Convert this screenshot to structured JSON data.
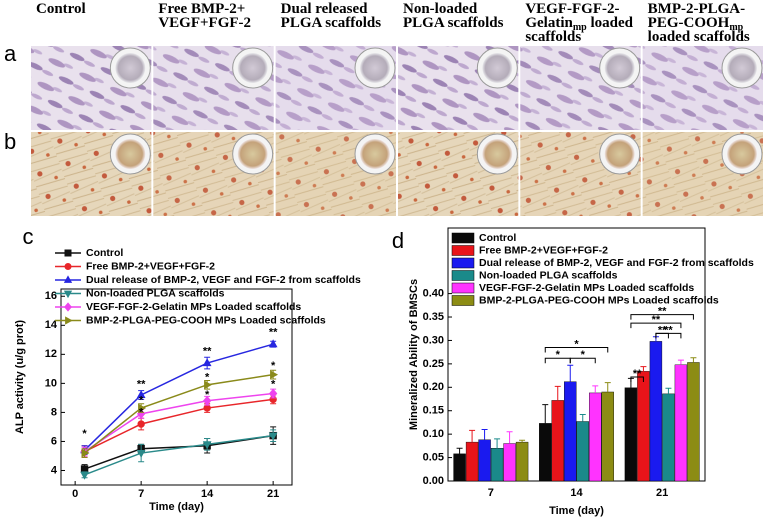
{
  "figure": {
    "column_headers": [
      [
        [
          {
            "text": "Control"
          }
        ]
      ],
      [
        [
          {
            "text": "Free BMP-2+"
          }
        ],
        [
          {
            "text": "VEGF+FGF-2"
          }
        ]
      ],
      [
        [
          {
            "text": "Dual released"
          }
        ],
        [
          {
            "text": "PLGA scaffolds"
          }
        ]
      ],
      [
        [
          {
            "text": "Non-loaded"
          }
        ],
        [
          {
            "text": "PLGA scaffolds"
          }
        ]
      ],
      [
        [
          {
            "text": "VEGF-FGF-2-"
          }
        ],
        [
          {
            "text": "Gelatin"
          },
          {
            "text": "mp",
            "sub": true
          },
          {
            "text": " loaded"
          }
        ],
        [
          {
            "text": "scaffolds"
          }
        ]
      ],
      [
        [
          {
            "text": "BMP-2-PLGA-"
          }
        ],
        [
          {
            "text": "PEG-COOH"
          },
          {
            "text": "mp",
            "sub": true
          }
        ],
        [
          {
            "text": "loaded scaffolds"
          }
        ]
      ]
    ],
    "row_labels": [
      "a",
      "b"
    ]
  },
  "chart_data": [
    {
      "type": "line",
      "panel_label": "c",
      "x_label": "Time (day)",
      "y_label": "ALP activity (u/g prot)",
      "x": [
        1,
        7,
        14,
        21
      ],
      "xlim": [
        -1.5,
        23
      ],
      "xticks": [
        0,
        7,
        14,
        21
      ],
      "ylim": [
        3,
        16.5
      ],
      "yticks": [
        4,
        6,
        8,
        10,
        12,
        14,
        16
      ],
      "series": [
        {
          "name": "Control",
          "color": "#111111",
          "marker": "square",
          "values": [
            4.1,
            5.5,
            5.7,
            6.4
          ],
          "errors": [
            0.3,
            0.3,
            0.5,
            0.6
          ]
        },
        {
          "name": "Free BMP-2+VEGF+FGF-2",
          "color": "#e8262a",
          "marker": "circle",
          "values": [
            5.3,
            7.2,
            8.3,
            8.9
          ],
          "errors": [
            0.4,
            0.4,
            0.3,
            0.3
          ]
        },
        {
          "name": "Dual release of BMP-2, VEGF and FGF-2 from scaffolds",
          "color": "#2727e0",
          "marker": "triangle-up",
          "values": [
            5.4,
            9.2,
            11.4,
            12.7
          ],
          "errors": [
            0.3,
            0.3,
            0.4,
            0.2
          ]
        },
        {
          "name": "Non-loaded PLGA scaffolds",
          "color": "#2a8a8a",
          "marker": "triangle-down",
          "values": [
            3.7,
            5.2,
            5.8,
            6.4
          ],
          "errors": [
            0.2,
            0.6,
            0.4,
            0.4
          ]
        },
        {
          "name": "VEGF-FGF-2-Gelatin MPs  Loaded scaffolds",
          "color": "#ee44ee",
          "marker": "diamond",
          "values": [
            5.3,
            7.9,
            8.8,
            9.3
          ],
          "errors": [
            0.3,
            0.3,
            0.3,
            0.3
          ]
        },
        {
          "name": "BMP-2-PLGA-PEG-COOH MPs Loaded scaffolds",
          "color": "#8a8a1a",
          "marker": "triangle-right",
          "values": [
            5.2,
            8.3,
            9.9,
            10.6
          ],
          "errors": [
            0.3,
            0.3,
            0.3,
            0.3
          ]
        }
      ],
      "annotations": [
        {
          "text": "*",
          "x": 1,
          "y": 6.5
        },
        {
          "text": "**",
          "x": 7,
          "y": 9.9
        },
        {
          "text": "*",
          "x": 7,
          "y": 8.8
        },
        {
          "text": "*",
          "x": 7,
          "y": 8.0
        },
        {
          "text": "**",
          "x": 14,
          "y": 12.2
        },
        {
          "text": "*",
          "x": 14,
          "y": 10.4
        },
        {
          "text": "*",
          "x": 14,
          "y": 9.2
        },
        {
          "text": "**",
          "x": 21,
          "y": 13.5
        },
        {
          "text": "*",
          "x": 21,
          "y": 11.2
        },
        {
          "text": "*",
          "x": 21,
          "y": 9.9
        }
      ]
    },
    {
      "type": "bar",
      "panel_label": "d",
      "x_label": "Time (day)",
      "y_label": "Mineralized Ability of BMSCs",
      "categories": [
        "7",
        "14",
        "21"
      ],
      "ylim": [
        0,
        0.54
      ],
      "yticks": [
        {
          "value": 0,
          "label": "0.00"
        },
        {
          "value": 0.05,
          "label": "0.05"
        },
        {
          "value": 0.1,
          "label": "0.10"
        },
        {
          "value": 0.15,
          "label": "0.15"
        },
        {
          "value": 0.2,
          "label": "0.20"
        },
        {
          "value": 0.25,
          "label": "0.25"
        },
        {
          "value": 0.3,
          "label": "0.30"
        },
        {
          "value": 0.35,
          "label": "0.35"
        },
        {
          "value": 0.4,
          "label": "0.40"
        }
      ],
      "series": [
        {
          "name": "Control",
          "color": "#0a0a0a",
          "values": [
            0.058,
            0.123,
            0.199
          ],
          "errors": [
            0.012,
            0.04,
            0.02
          ]
        },
        {
          "name": "Free BMP-2+VEGF+FGF-2",
          "color": "#e8141a",
          "values": [
            0.083,
            0.172,
            0.234
          ],
          "errors": [
            0.025,
            0.03,
            0.01
          ]
        },
        {
          "name": "Dual release of BMP-2, VEGF and FGF-2 from scaffolds",
          "color": "#1a1aef",
          "values": [
            0.088,
            0.212,
            0.298
          ],
          "errors": [
            0.022,
            0.035,
            0.01
          ]
        },
        {
          "name": "Non-loaded PLGA scaffolds",
          "color": "#1a8a8a",
          "values": [
            0.07,
            0.127,
            0.186
          ],
          "errors": [
            0.02,
            0.015,
            0.012
          ]
        },
        {
          "name": "VEGF-FGF-2-Gelatin MPs  Loaded scaffolds",
          "color": "#ff33ff",
          "values": [
            0.08,
            0.188,
            0.248
          ],
          "errors": [
            0.025,
            0.015,
            0.01
          ]
        },
        {
          "name": "BMP-2-PLGA-PEG-COOH MPs Loaded scaffolds",
          "color": "#8c8c14",
          "values": [
            0.083,
            0.19,
            0.253
          ],
          "errors": [
            0.004,
            0.02,
            0.01
          ]
        }
      ],
      "brackets": [
        {
          "group": 1,
          "from": 0,
          "to": 5,
          "y": 0.285,
          "text": "*"
        },
        {
          "group": 1,
          "from": 0,
          "to": 2,
          "y": 0.262,
          "text": "*"
        },
        {
          "group": 1,
          "from": 2,
          "to": 4,
          "y": 0.262,
          "text": "*"
        },
        {
          "group": 2,
          "from": 0,
          "to": 1,
          "y": 0.222,
          "text": "**"
        },
        {
          "group": 2,
          "from": 0,
          "to": 5,
          "y": 0.355,
          "text": "**"
        },
        {
          "group": 2,
          "from": 0,
          "to": 4,
          "y": 0.337,
          "text": "**"
        },
        {
          "group": 2,
          "from": 2,
          "to": 3,
          "y": 0.315,
          "text": "**"
        },
        {
          "group": 2,
          "from": 2,
          "to": 4,
          "y": 0.315,
          "text": "**"
        }
      ]
    }
  ]
}
